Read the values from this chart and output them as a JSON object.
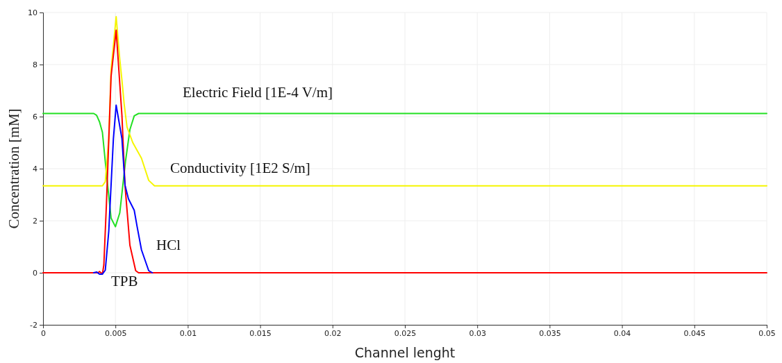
{
  "chart_data": {
    "type": "line",
    "xlabel": "Channel lenght",
    "ylabel": "Concentration [mM]",
    "xlim": [
      0,
      0.05
    ],
    "xticks": [
      0,
      0.005,
      0.01,
      0.015,
      0.02,
      0.025,
      0.03,
      0.035,
      0.04,
      0.045,
      0.05
    ],
    "ylim": [
      -2,
      10
    ],
    "yticks": [
      -2,
      0,
      2,
      4,
      6,
      8,
      10
    ],
    "grid": true,
    "legend": false,
    "marker": "none",
    "line_style": "solid",
    "series": [
      {
        "name": "Electric Field [1E-4 V/m]",
        "color": "#22e022",
        "x": [
          0,
          0.0035,
          0.0037,
          0.0039,
          0.0041,
          0.0044,
          0.0047,
          0.005,
          0.0053,
          0.0057,
          0.006,
          0.0063,
          0.0066,
          0.05
        ],
        "values": [
          6.12,
          6.12,
          6.05,
          5.8,
          5.4,
          3.7,
          2.1,
          1.77,
          2.3,
          4.3,
          5.5,
          6.03,
          6.12,
          6.12
        ]
      },
      {
        "name": "Conductivity [1E2 S/m]",
        "color": "#f5f500",
        "x": [
          0,
          0.0041,
          0.0043,
          0.00454,
          0.0047,
          0.00505,
          0.0053,
          0.00545,
          0.0056,
          0.0058,
          0.0062,
          0.0068,
          0.0073,
          0.0077,
          0.05
        ],
        "values": [
          3.34,
          3.34,
          3.5,
          5.15,
          7.8,
          9.84,
          8.2,
          7.4,
          6.5,
          5.6,
          5.0,
          4.4,
          3.55,
          3.34,
          3.34
        ]
      },
      {
        "name": "HCl",
        "color": "#0000ff",
        "x": [
          0.0035,
          0.0037,
          0.0039,
          0.0041,
          0.0043,
          0.00454,
          0.00486,
          0.00505,
          0.00545,
          0.00566,
          0.0059,
          0.0063,
          0.0065,
          0.0068,
          0.0073,
          0.00755
        ],
        "values": [
          0,
          0.03,
          -0.05,
          -0.05,
          0.1,
          1.6,
          5.15,
          6.44,
          5.15,
          3.37,
          2.84,
          2.4,
          1.77,
          0.88,
          0.08,
          0
        ]
      },
      {
        "name": "TPB",
        "color": "#ff0000",
        "x": [
          0,
          0.0038,
          0.0039,
          0.004,
          0.0041,
          0.0042,
          0.00438,
          0.0047,
          0.00505,
          0.00545,
          0.00566,
          0.006,
          0.0064,
          0.0066,
          0.05
        ],
        "values": [
          0,
          0,
          0.05,
          0,
          -0.05,
          0.3,
          2.66,
          7.55,
          9.32,
          6.04,
          3.37,
          1.06,
          0.08,
          0,
          0
        ]
      }
    ]
  }
}
